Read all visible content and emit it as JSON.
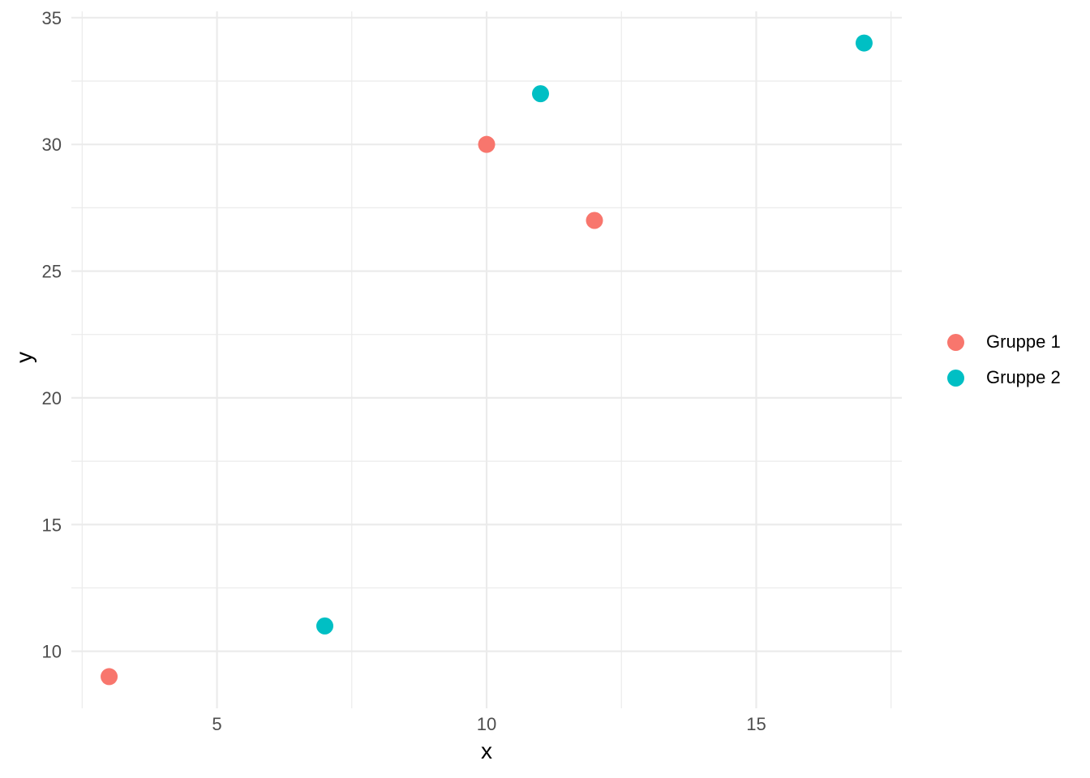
{
  "chart_data": {
    "type": "scatter",
    "xlabel": "x",
    "ylabel": "y",
    "xlim": [
      2.3,
      17.7
    ],
    "ylim": [
      7.75,
      35.25
    ],
    "x_ticks": [
      5,
      10,
      15
    ],
    "x_minor_ticks": [
      2.5,
      7.5,
      12.5,
      17.5
    ],
    "y_ticks": [
      10,
      15,
      20,
      25,
      30,
      35
    ],
    "y_minor_ticks": [
      12.5,
      17.5,
      22.5,
      27.5,
      32.5
    ],
    "grid": true,
    "legend_position": "right",
    "point_radius": 10.5,
    "series": [
      {
        "name": "Gruppe 1",
        "color": "#F8766D",
        "points": [
          {
            "x": 3,
            "y": 9
          },
          {
            "x": 10,
            "y": 30
          },
          {
            "x": 12,
            "y": 27
          }
        ]
      },
      {
        "name": "Gruppe 2",
        "color": "#00BFC4",
        "points": [
          {
            "x": 7,
            "y": 11
          },
          {
            "x": 11,
            "y": 32
          },
          {
            "x": 17,
            "y": 34
          }
        ]
      }
    ]
  },
  "style": {
    "background_color": "#FFFFFF",
    "grid_color": "#EBEBEB",
    "tick_label_color": "#4D4D4D",
    "axis_title_color": "#000000",
    "legend_text_color": "#000000"
  }
}
